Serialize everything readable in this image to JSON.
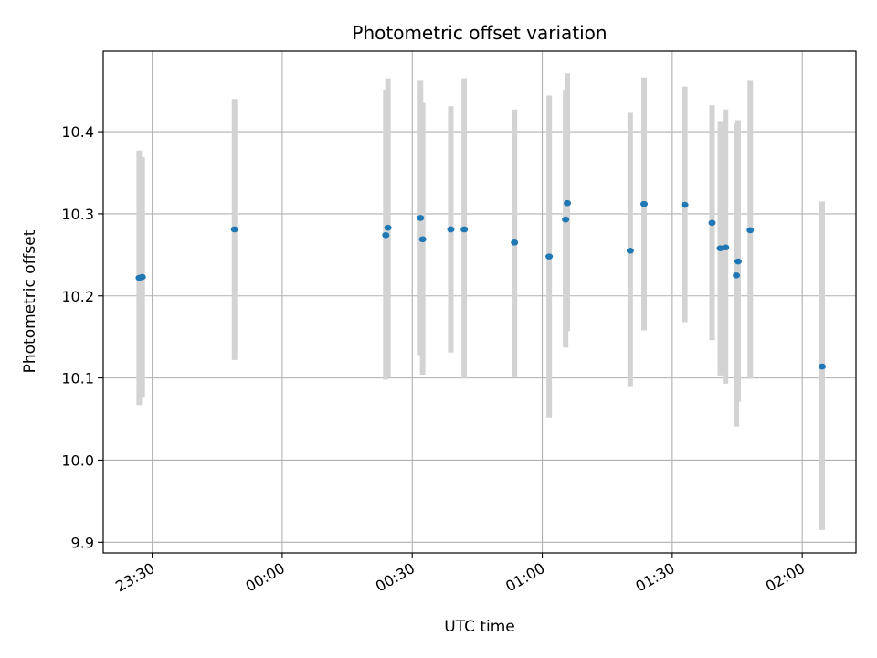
{
  "chart_data": {
    "type": "scatter",
    "title": "Photometric offset variation",
    "xlabel": "UTC time",
    "ylabel": "Photometric offset",
    "x_tick_labels": [
      "23:30",
      "00:00",
      "00:30",
      "01:00",
      "01:30",
      "02:00"
    ],
    "y_tick_labels": [
      "9.9",
      "10.0",
      "10.1",
      "10.2",
      "10.3",
      "10.4"
    ],
    "x_tick_minutes": [
      -30,
      0,
      30,
      60,
      90,
      120
    ],
    "y_ticks": [
      9.9,
      10.0,
      10.1,
      10.2,
      10.3,
      10.4
    ],
    "xlim_minutes": [
      -41.3,
      132.4
    ],
    "ylim": [
      9.887,
      10.498
    ],
    "grid": true,
    "point_color": "#1f77b4",
    "errorbar_color": "#d3d3d3",
    "points": [
      {
        "t": -33.0,
        "y": 10.222,
        "lo": 10.067,
        "hi": 10.377
      },
      {
        "t": -32.3,
        "y": 10.223,
        "lo": 10.077,
        "hi": 10.369
      },
      {
        "t": -11.0,
        "y": 10.281,
        "lo": 10.122,
        "hi": 10.44
      },
      {
        "t": 23.9,
        "y": 10.274,
        "lo": 10.098,
        "hi": 10.451
      },
      {
        "t": 24.4,
        "y": 10.283,
        "lo": 10.101,
        "hi": 10.465
      },
      {
        "t": 31.9,
        "y": 10.295,
        "lo": 10.128,
        "hi": 10.462
      },
      {
        "t": 32.4,
        "y": 10.269,
        "lo": 10.104,
        "hi": 10.435
      },
      {
        "t": 38.9,
        "y": 10.281,
        "lo": 10.131,
        "hi": 10.431
      },
      {
        "t": 42.0,
        "y": 10.281,
        "lo": 10.099,
        "hi": 10.465
      },
      {
        "t": 53.6,
        "y": 10.265,
        "lo": 10.102,
        "hi": 10.427
      },
      {
        "t": 61.6,
        "y": 10.248,
        "lo": 10.052,
        "hi": 10.444
      },
      {
        "t": 65.4,
        "y": 10.293,
        "lo": 10.137,
        "hi": 10.45
      },
      {
        "t": 65.8,
        "y": 10.313,
        "lo": 10.157,
        "hi": 10.471
      },
      {
        "t": 80.3,
        "y": 10.255,
        "lo": 10.09,
        "hi": 10.423
      },
      {
        "t": 83.5,
        "y": 10.312,
        "lo": 10.158,
        "hi": 10.466
      },
      {
        "t": 92.9,
        "y": 10.311,
        "lo": 10.168,
        "hi": 10.455
      },
      {
        "t": 99.2,
        "y": 10.289,
        "lo": 10.146,
        "hi": 10.432
      },
      {
        "t": 101.1,
        "y": 10.258,
        "lo": 10.103,
        "hi": 10.413
      },
      {
        "t": 102.3,
        "y": 10.259,
        "lo": 10.093,
        "hi": 10.427
      },
      {
        "t": 104.8,
        "y": 10.225,
        "lo": 10.041,
        "hi": 10.41
      },
      {
        "t": 105.2,
        "y": 10.242,
        "lo": 10.071,
        "hi": 10.414
      },
      {
        "t": 108.0,
        "y": 10.28,
        "lo": 10.099,
        "hi": 10.462
      },
      {
        "t": 124.6,
        "y": 10.114,
        "lo": 9.915,
        "hi": 10.315
      }
    ]
  }
}
